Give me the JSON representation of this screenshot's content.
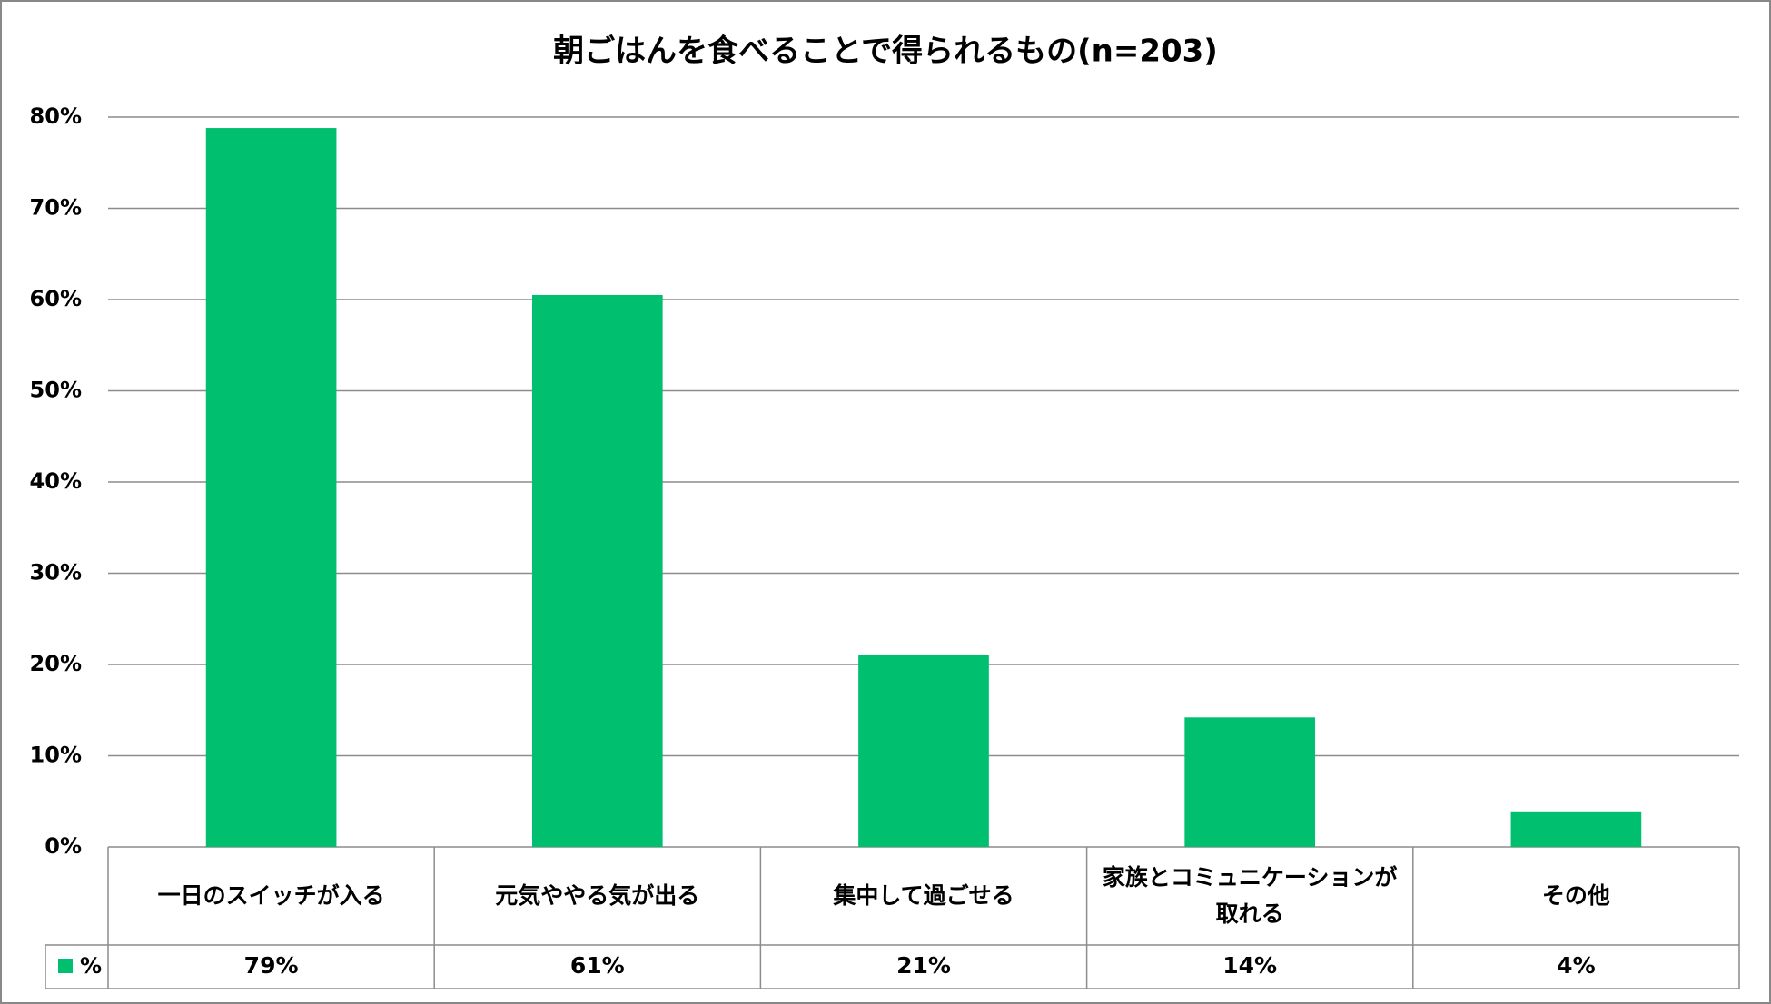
{
  "chart_data": {
    "type": "bar",
    "title": "朝ごはんを食べることで得られるもの(n=203)",
    "categories": [
      "一日のスイッチが入る",
      "元気ややる気が出る",
      "集中して過ごせる",
      "家族とコミュニケーションが取れる",
      "その他"
    ],
    "series": [
      {
        "name": "%",
        "color": "#00bf6f",
        "values": [
          78.8,
          60.5,
          21.1,
          14.2,
          3.9
        ],
        "value_labels": [
          "79%",
          "61%",
          "21%",
          "14%",
          "4%"
        ]
      }
    ],
    "ylim": [
      0,
      80
    ],
    "yticks": [
      {
        "value": 0,
        "label": "0%"
      },
      {
        "value": 10,
        "label": "10%"
      },
      {
        "value": 20,
        "label": "20%"
      },
      {
        "value": 30,
        "label": "30%"
      },
      {
        "value": 40,
        "label": "40%"
      },
      {
        "value": 50,
        "label": "50%"
      },
      {
        "value": 60,
        "label": "60%"
      },
      {
        "value": 70,
        "label": "70%"
      },
      {
        "value": 80,
        "label": "80%"
      }
    ],
    "grid": true
  }
}
